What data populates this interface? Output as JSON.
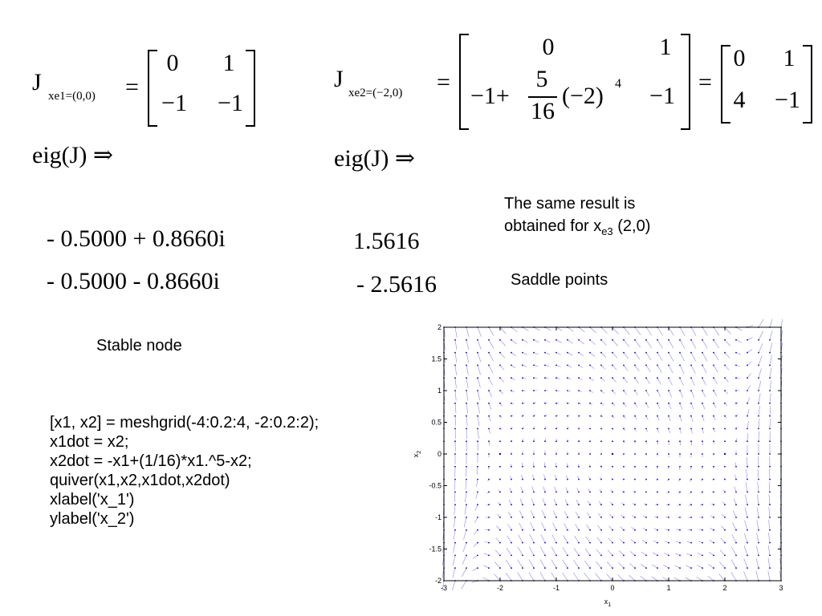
{
  "left_eq": {
    "J": "J",
    "subscript": "xe1=(0,0)",
    "equals": "=",
    "matrix": [
      [
        "0",
        "1"
      ],
      [
        "−1",
        "−1"
      ]
    ],
    "eig": "eig(J)",
    "implies": "⇒",
    "eigenvalues": [
      "- 0.5000 + 0.8660i",
      "- 0.5000 - 0.8660i"
    ],
    "classification": "Stable node"
  },
  "right_eq": {
    "J": "J",
    "subscript": "xe2=(−2,0)",
    "equals": "=",
    "big_matrix": {
      "r1c1": "0",
      "r1c2": "1",
      "r2c1_pre": "−1+",
      "r2c1_num": "5",
      "r2c1_den": "16",
      "r2c1_post": "(−2)",
      "r2c1_exp": "4",
      "r2c2": "−1"
    },
    "equals2": "=",
    "result_matrix": [
      [
        "0",
        "1"
      ],
      [
        "4",
        "−1"
      ]
    ],
    "eig": "eig(J)",
    "implies": "⇒",
    "eigenvalues": [
      "1.5616",
      "- 2.5616"
    ],
    "note_line1": "The same result is",
    "note_line2_pre": "obtained for x",
    "note_line2_sub": "e3",
    "note_line2_post": " (2,0)",
    "classification": "Saddle points"
  },
  "code": [
    "[x1, x2] = meshgrid(-4:0.2:4, -2:0.2:2);",
    "x1dot = x2;",
    "x2dot = -x1+(1/16)*x1.^5-x2;",
    "quiver(x1,x2,x1dot,x2dot)",
    "xlabel('x_1')",
    "ylabel('x_2')"
  ],
  "chart_data": {
    "type": "quiver",
    "xlabel": "x",
    "xlabel_sub": "1",
    "ylabel": "x",
    "ylabel_sub": "2",
    "xlim": [
      -3,
      3
    ],
    "ylim": [
      -2,
      2
    ],
    "x_ticks": [
      "-3",
      "-2",
      "-1",
      "0",
      "1",
      "2",
      "3"
    ],
    "y_ticks": [
      "2",
      "1.5",
      "1",
      "0.5",
      "0",
      "-0.5",
      "-1",
      "-1.5",
      "-2"
    ],
    "x_tick_values": [
      -3,
      -2,
      -1,
      0,
      1,
      2,
      3
    ],
    "y_tick_values": [
      2,
      1.5,
      1,
      0.5,
      0,
      -0.5,
      -1,
      -1.5,
      -2
    ],
    "arrow_color": "#8888ee",
    "dot_color": "#0000dd"
  }
}
